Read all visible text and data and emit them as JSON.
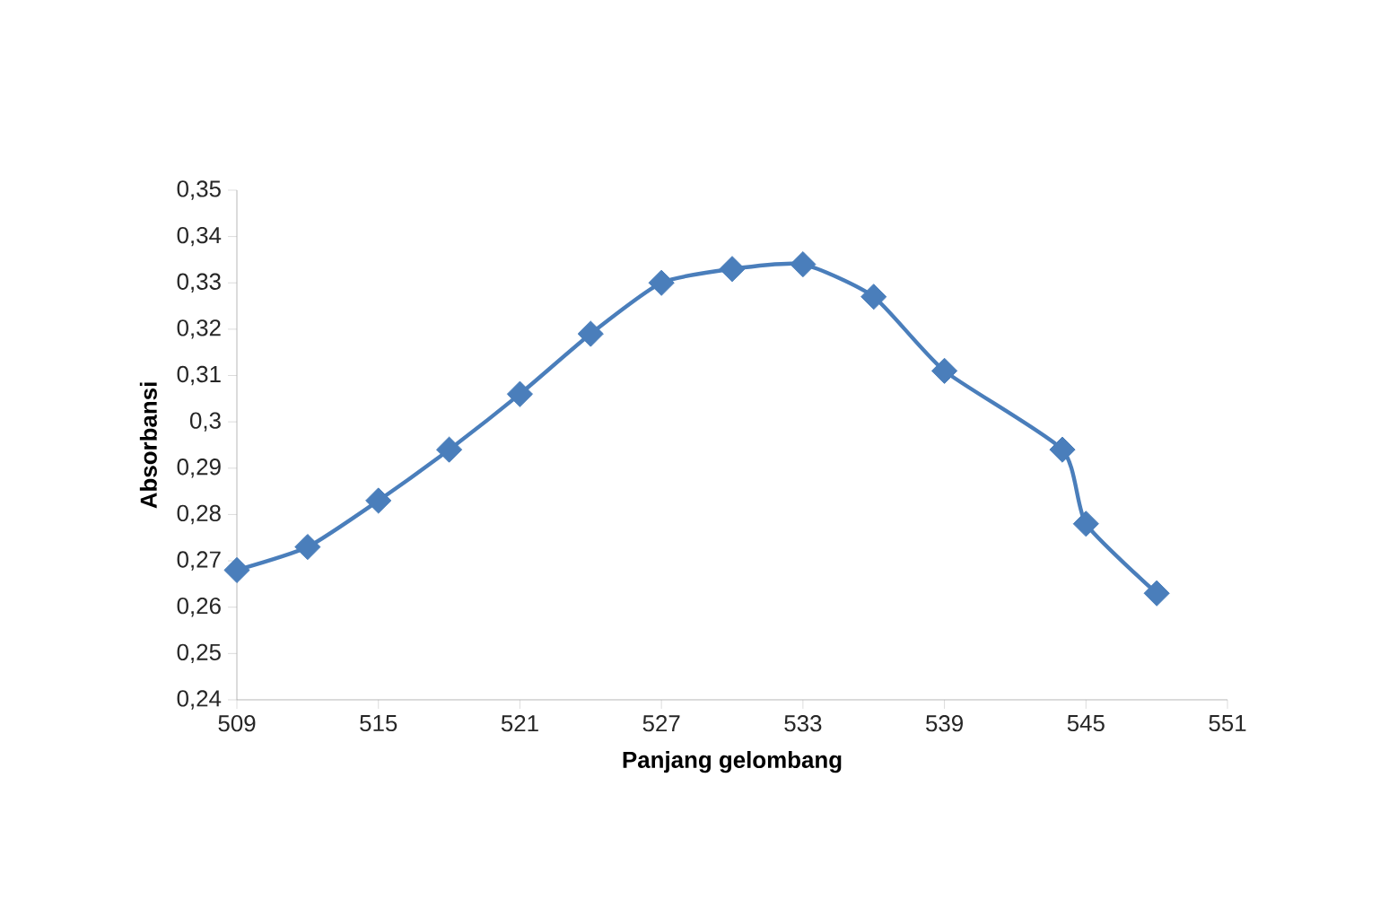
{
  "chart_data": {
    "type": "line",
    "xlabel": "Panjang gelombang",
    "ylabel": "Absorbansi",
    "x": [
      509,
      512,
      515,
      518,
      521,
      524,
      527,
      530,
      533,
      536,
      539,
      544,
      545,
      548
    ],
    "series": [
      {
        "color": "#4a7ebb",
        "values": [
          0.268,
          0.273,
          0.283,
          0.294,
          0.306,
          0.319,
          0.33,
          0.333,
          0.334,
          0.327,
          0.311,
          0.294,
          0.278,
          0.263
        ]
      }
    ],
    "xlim": [
      509,
      551
    ],
    "xticks": [
      509,
      515,
      521,
      527,
      533,
      539,
      545,
      551
    ],
    "ylim": [
      0.24,
      0.35
    ],
    "yticks": [
      {
        "value": 0.24,
        "label": "0,24"
      },
      {
        "value": 0.25,
        "label": "0,25"
      },
      {
        "value": 0.26,
        "label": "0,26"
      },
      {
        "value": 0.27,
        "label": "0,27"
      },
      {
        "value": 0.28,
        "label": "0,28"
      },
      {
        "value": 0.29,
        "label": "0,29"
      },
      {
        "value": 0.3,
        "label": "0,3"
      },
      {
        "value": 0.31,
        "label": "0,31"
      },
      {
        "value": 0.32,
        "label": "0,32"
      },
      {
        "value": 0.33,
        "label": "0,33"
      },
      {
        "value": 0.34,
        "label": "0,34"
      },
      {
        "value": 0.35,
        "label": "0,35"
      }
    ],
    "marker": "diamond",
    "line_style": "solid"
  }
}
